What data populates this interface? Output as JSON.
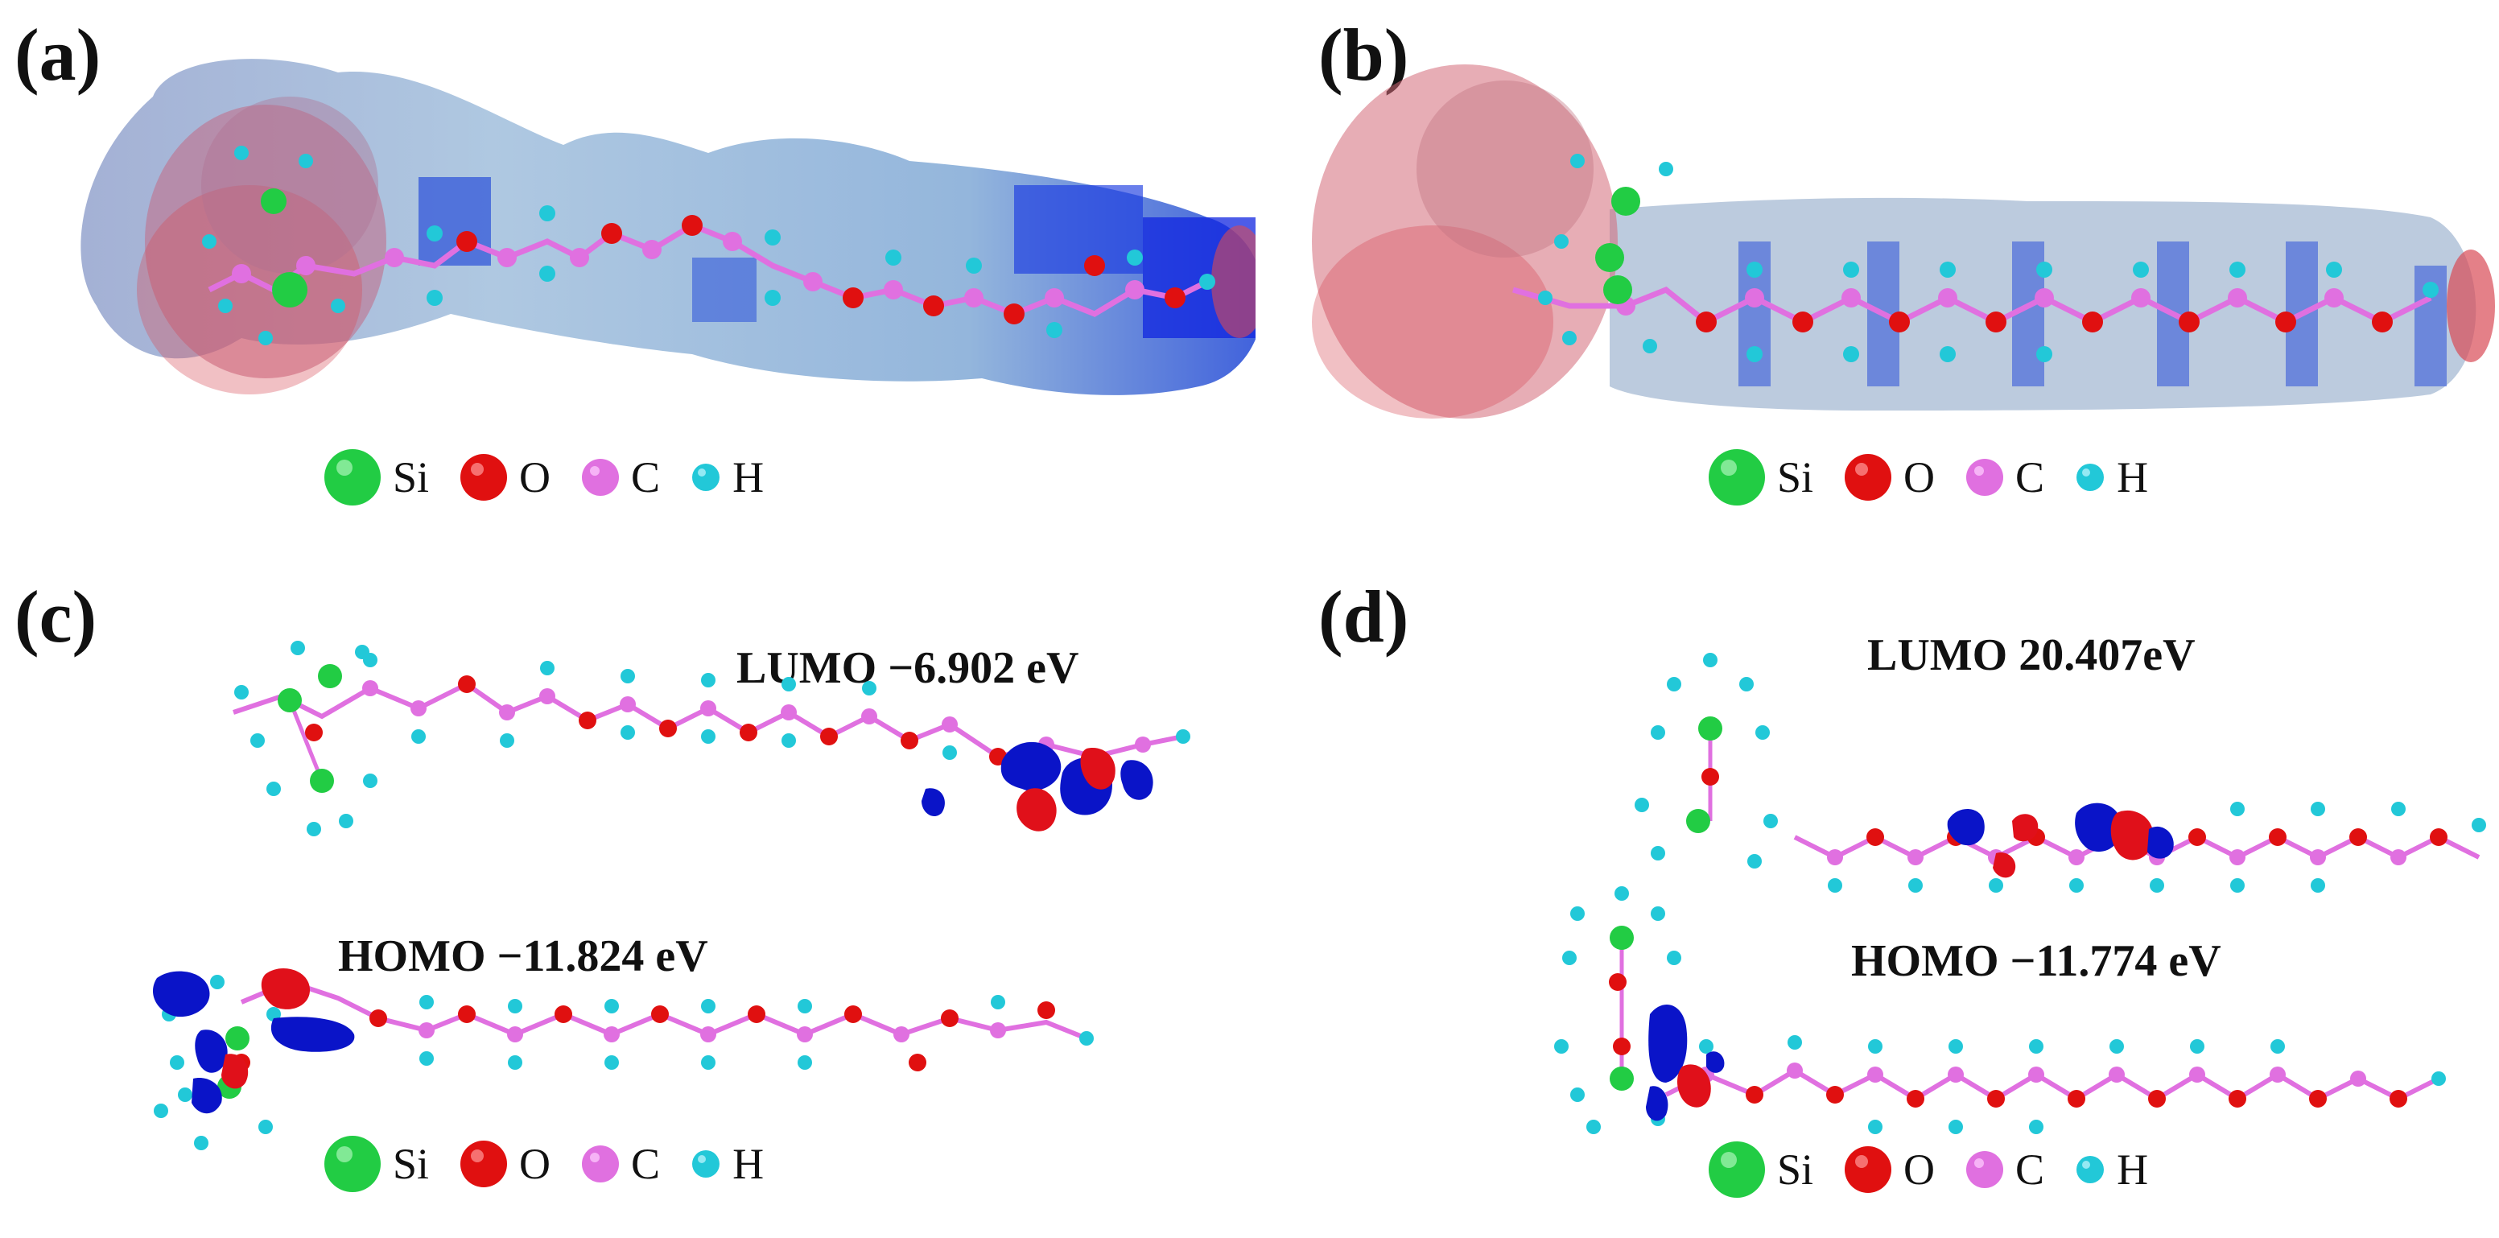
{
  "panels": {
    "a": {
      "label": "(a)"
    },
    "b": {
      "label": "(b)"
    },
    "c": {
      "label": "(c)",
      "lumo": "LUMO −6.902 eV",
      "homo": "HOMO −11.824 eV"
    },
    "d": {
      "label": "(d)",
      "lumo": "LUMO 20.407eV",
      "homo": "HOMO −11.774 eV"
    }
  },
  "legend": [
    {
      "symbol": "Si",
      "color": "#22cc44",
      "size": "large"
    },
    {
      "symbol": "O",
      "color": "#e01010",
      "size": "medium"
    },
    {
      "symbol": "C",
      "color": "#e070e0",
      "size": "small"
    },
    {
      "symbol": "H",
      "color": "#22c8d8",
      "size": "tiny"
    }
  ],
  "colors": {
    "esp_blue": "#4a7fd0",
    "esp_light": "#a8c4e0",
    "esp_red": "#d84a55",
    "orbital_red": "#e0101a",
    "orbital_blue": "#0a14c8",
    "bond": "#e070e0"
  }
}
